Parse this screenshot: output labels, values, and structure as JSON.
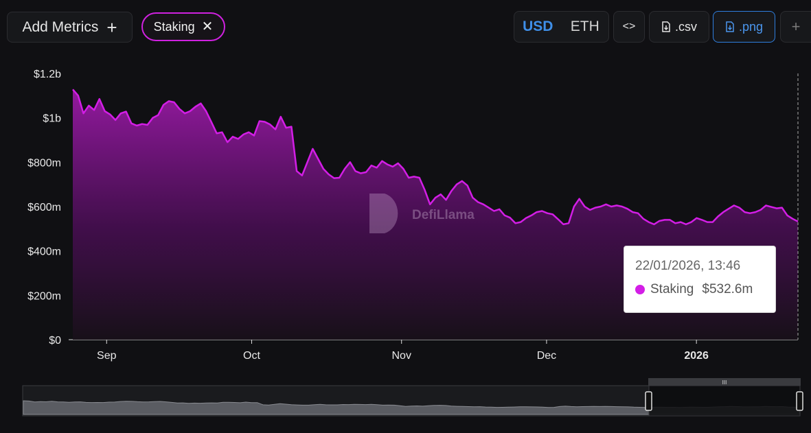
{
  "toolbar": {
    "add_metrics_label": "Add Metrics",
    "add_metrics_icon": "plus-icon",
    "metric_chip_label": "Staking",
    "metric_chip_icon": "close-icon",
    "currency_options": [
      "USD",
      "ETH"
    ],
    "currency_selected": "USD",
    "embed_icon": "code-icon",
    "csv_label": ".csv",
    "csv_icon": "download-file-icon",
    "png_label": ".png",
    "png_icon": "download-file-icon",
    "more_label": "+"
  },
  "watermark": "DefiLlama",
  "tooltip": {
    "time": "22/01/2026, 13:46",
    "series": "Staking",
    "value": "$532.6m"
  },
  "colors": {
    "series": "#d31ee6",
    "accent": "#3f8fe8",
    "chip_border": "#d021e0"
  },
  "chart_data": {
    "type": "area",
    "series_name": "Staking",
    "x_start": "2025-08-25",
    "x_end": "2026-01-22",
    "y_ticks": [
      "$0",
      "$200m",
      "$400m",
      "$600m",
      "$800m",
      "$1b",
      "$1.2b"
    ],
    "y_tick_values": [
      0,
      200,
      400,
      600,
      800,
      1000,
      1200
    ],
    "y_unit": "USD millions",
    "ylim": [
      0,
      1200
    ],
    "x_ticks": [
      {
        "date": "2025-09-01",
        "label": "Sep",
        "bold": false
      },
      {
        "date": "2025-10-01",
        "label": "Oct",
        "bold": false
      },
      {
        "date": "2025-11-01",
        "label": "Nov",
        "bold": false
      },
      {
        "date": "2025-12-01",
        "label": "Dec",
        "bold": false
      },
      {
        "date": "2026-01-01",
        "label": "2026",
        "bold": true
      }
    ],
    "values": [
      1128,
      1100,
      1020,
      1055,
      1035,
      1085,
      1030,
      1015,
      990,
      1020,
      1028,
      975,
      965,
      972,
      968,
      1000,
      1012,
      1058,
      1075,
      1070,
      1040,
      1020,
      1030,
      1050,
      1065,
      1030,
      980,
      930,
      935,
      890,
      915,
      905,
      925,
      935,
      920,
      985,
      982,
      970,
      948,
      1005,
      955,
      960,
      760,
      740,
      800,
      860,
      815,
      770,
      745,
      728,
      730,
      770,
      800,
      760,
      750,
      755,
      785,
      775,
      805,
      790,
      780,
      795,
      770,
      730,
      735,
      730,
      675,
      610,
      640,
      655,
      630,
      670,
      700,
      715,
      695,
      640,
      620,
      610,
      595,
      580,
      588,
      560,
      550,
      525,
      530,
      548,
      560,
      575,
      580,
      570,
      565,
      543,
      520,
      525,
      600,
      635,
      600,
      585,
      595,
      600,
      610,
      600,
      605,
      600,
      590,
      575,
      570,
      545,
      530,
      520,
      535,
      540,
      540,
      525,
      530,
      520,
      530,
      548,
      540,
      530,
      530,
      555,
      575,
      590,
      605,
      595,
      575,
      570,
      575,
      585,
      605,
      598,
      592,
      595,
      560,
      545,
      532.6
    ],
    "grid": false,
    "legend": "none",
    "crosshair_date": "2026-01-22",
    "brush_range": [
      "2025-08-25",
      "2026-01-22"
    ]
  }
}
